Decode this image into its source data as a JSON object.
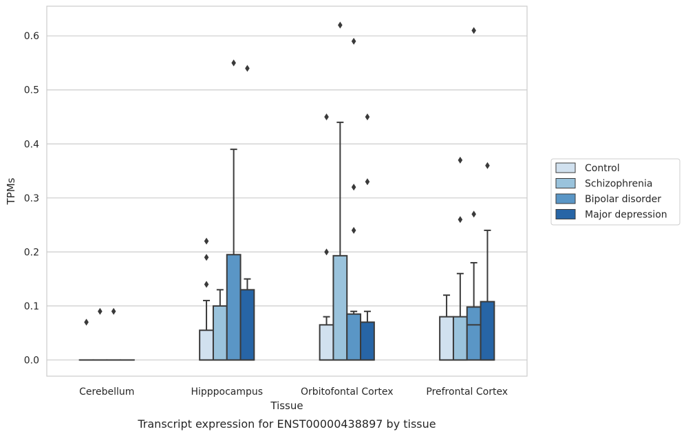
{
  "chart_data": {
    "type": "box",
    "title": "",
    "caption": "Transcript expression for ENST00000438897 by tissue",
    "xlabel": "Tissue",
    "ylabel": "TPMs",
    "ylim": [
      -0.03,
      0.655
    ],
    "yticks": [
      "0.0",
      "0.1",
      "0.2",
      "0.3",
      "0.4",
      "0.5",
      "0.6"
    ],
    "ytick_values": [
      0.0,
      0.1,
      0.2,
      0.3,
      0.4,
      0.5,
      0.6
    ],
    "grid": "horizontal",
    "legend_position": "right",
    "categories": [
      "Cerebellum",
      "Hipppocampus",
      "Orbitofontal Cortex",
      "Prefrontal Cortex"
    ],
    "series": [
      {
        "name": "Control",
        "color": "#d1e1ef",
        "boxes": [
          {
            "q1": 0.0,
            "median": 0.0,
            "q3": 0.0,
            "whisker_low": 0.0,
            "whisker_high": 0.0,
            "outliers": [
              0.07
            ]
          },
          {
            "q1": 0.0,
            "median": 0.0,
            "q3": 0.055,
            "whisker_low": 0.0,
            "whisker_high": 0.11,
            "outliers": [
              0.14,
              0.19,
              0.22
            ]
          },
          {
            "q1": 0.0,
            "median": 0.0,
            "q3": 0.065,
            "whisker_low": 0.0,
            "whisker_high": 0.08,
            "outliers": [
              0.2,
              0.45
            ]
          },
          {
            "q1": 0.0,
            "median": 0.0,
            "q3": 0.08,
            "whisker_low": 0.0,
            "whisker_high": 0.12,
            "outliers": []
          }
        ]
      },
      {
        "name": "Schizophrenia",
        "color": "#9ac3dc",
        "boxes": [
          {
            "q1": 0.0,
            "median": 0.0,
            "q3": 0.0,
            "whisker_low": 0.0,
            "whisker_high": 0.0,
            "outliers": [
              0.09
            ]
          },
          {
            "q1": 0.0,
            "median": 0.0,
            "q3": 0.1,
            "whisker_low": 0.0,
            "whisker_high": 0.13,
            "outliers": []
          },
          {
            "q1": 0.0,
            "median": 0.0,
            "q3": 0.193,
            "whisker_low": 0.0,
            "whisker_high": 0.44,
            "outliers": [
              0.62
            ]
          },
          {
            "q1": 0.0,
            "median": 0.0,
            "q3": 0.08,
            "whisker_low": 0.0,
            "whisker_high": 0.16,
            "outliers": [
              0.26,
              0.37
            ]
          }
        ]
      },
      {
        "name": "Bipolar disorder",
        "color": "#5a96c6",
        "boxes": [
          {
            "q1": 0.0,
            "median": 0.0,
            "q3": 0.0,
            "whisker_low": 0.0,
            "whisker_high": 0.0,
            "outliers": [
              0.09
            ]
          },
          {
            "q1": 0.0,
            "median": 0.0,
            "q3": 0.195,
            "whisker_low": 0.0,
            "whisker_high": 0.39,
            "outliers": [
              0.55
            ]
          },
          {
            "q1": 0.0,
            "median": 0.0,
            "q3": 0.085,
            "whisker_low": 0.0,
            "whisker_high": 0.09,
            "outliers": [
              0.24,
              0.32,
              0.59
            ]
          },
          {
            "q1": 0.0,
            "median": 0.065,
            "q3": 0.098,
            "whisker_low": 0.0,
            "whisker_high": 0.18,
            "outliers": [
              0.27,
              0.61
            ]
          }
        ]
      },
      {
        "name": "Major depression",
        "color": "#2765a6",
        "boxes": [
          {
            "q1": 0.0,
            "median": 0.0,
            "q3": 0.0,
            "whisker_low": 0.0,
            "whisker_high": 0.0,
            "outliers": []
          },
          {
            "q1": 0.0,
            "median": 0.0,
            "q3": 0.13,
            "whisker_low": 0.0,
            "whisker_high": 0.15,
            "outliers": [
              0.54
            ]
          },
          {
            "q1": 0.0,
            "median": 0.0,
            "q3": 0.07,
            "whisker_low": 0.0,
            "whisker_high": 0.09,
            "outliers": [
              0.33,
              0.45
            ]
          },
          {
            "q1": 0.0,
            "median": 0.0,
            "q3": 0.108,
            "whisker_low": 0.0,
            "whisker_high": 0.24,
            "outliers": [
              0.36
            ]
          }
        ]
      }
    ]
  }
}
